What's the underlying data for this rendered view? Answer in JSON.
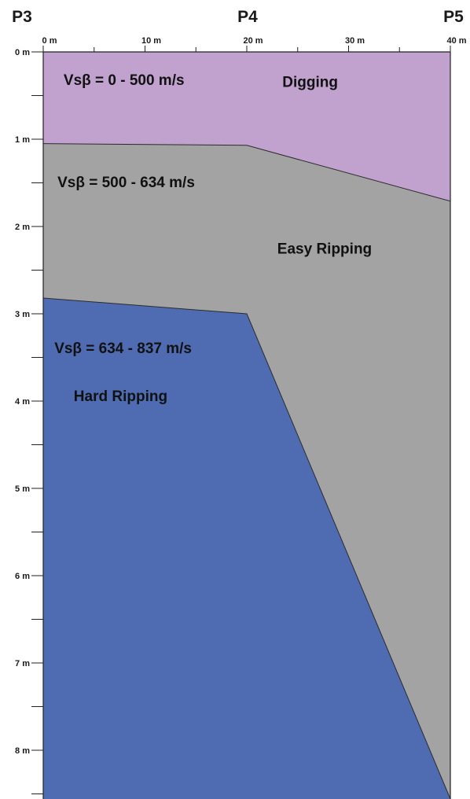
{
  "stations": [
    {
      "label": "P3",
      "distance": 0
    },
    {
      "label": "P4",
      "distance": 20
    },
    {
      "label": "P5",
      "distance": 40
    }
  ],
  "x_axis": {
    "min": 0,
    "max": 40,
    "major_ticks": [
      0,
      10,
      20,
      30,
      40
    ],
    "minor_ticks": [
      5,
      15,
      25,
      35
    ],
    "tick_labels": [
      "0 m",
      "10 m",
      "20 m",
      "30 m",
      "40 m"
    ]
  },
  "y_axis": {
    "min": 0,
    "max": 8.6,
    "major_ticks": [
      0,
      1,
      2,
      3,
      4,
      5,
      6,
      7,
      8
    ],
    "minor_ticks": [
      0.5,
      1.5,
      2.5,
      3.5,
      4.5,
      5.5,
      6.5,
      7.5,
      8.5
    ],
    "tick_labels": [
      "0 m",
      "1 m",
      "2 m",
      "3 m",
      "4 m",
      "5 m",
      "6 m",
      "7 m",
      "8 m"
    ]
  },
  "layers": [
    {
      "key": "digging",
      "velocity_label": "Vsβ = 0 - 500 m/s",
      "class_label": "Digging",
      "color": "#c1a2cf",
      "polygon": [
        [
          0,
          0
        ],
        [
          40,
          0
        ],
        [
          40,
          1.71
        ],
        [
          20,
          1.07
        ],
        [
          0,
          1.05
        ]
      ]
    },
    {
      "key": "easy",
      "velocity_label": "Vsβ = 500 - 634 m/s",
      "class_label": "Easy Ripping",
      "color": "#a3a3a3",
      "polygon": [
        [
          0,
          1.05
        ],
        [
          20,
          1.07
        ],
        [
          40,
          1.71
        ],
        [
          40,
          8.6
        ],
        [
          20,
          3.0
        ],
        [
          0,
          2.82
        ]
      ]
    },
    {
      "key": "hard",
      "velocity_label": "Vsβ = 634 - 837 m/s",
      "class_label": "Hard Ripping",
      "color": "#4f6cb3",
      "polygon": [
        [
          0,
          2.82
        ],
        [
          20,
          3.0
        ],
        [
          40,
          8.6
        ],
        [
          0,
          8.6
        ]
      ]
    }
  ],
  "labels_placement": [
    {
      "layer": "digging",
      "text_key": "velocity_label",
      "x": 2,
      "y": 0.38
    },
    {
      "layer": "digging",
      "text_key": "class_label",
      "x": 23.5,
      "y": 0.4
    },
    {
      "layer": "easy",
      "text_key": "velocity_label",
      "x": 1.4,
      "y": 1.55
    },
    {
      "layer": "easy",
      "text_key": "class_label",
      "x": 23,
      "y": 2.31
    },
    {
      "layer": "hard",
      "text_key": "velocity_label",
      "x": 1.1,
      "y": 3.45
    },
    {
      "layer": "hard",
      "text_key": "class_label",
      "x": 3,
      "y": 4.0
    }
  ]
}
